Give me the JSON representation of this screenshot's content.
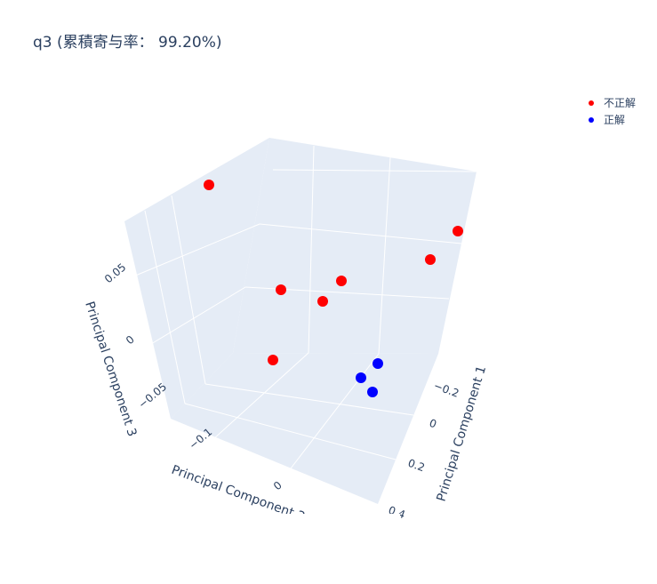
{
  "title": "q3 (累積寄与率： 99.20%)",
  "colors": {
    "pane": "#e5ecf6",
    "grid": "#ffffff",
    "text": "#2a3f5f"
  },
  "chart_data": {
    "type": "scatter3d",
    "title": "q3 (累積寄与率： 99.20%)",
    "axes": {
      "x": {
        "label": "Principal Component 1",
        "ticks": [
          "−0.2",
          "0",
          "0.2",
          "0.4"
        ]
      },
      "y": {
        "label": "Principal Component 2",
        "ticks": [
          "−0.1",
          "0"
        ]
      },
      "z": {
        "label": "Principal Component 3",
        "ticks": [
          "0.05",
          "0",
          "−0.05"
        ]
      }
    },
    "legend_position": "top-right",
    "series": [
      {
        "name": "不正解",
        "color": "#ff0000",
        "count": 7
      },
      {
        "name": "正解",
        "color": "#0000ff",
        "count": 3
      }
    ]
  }
}
